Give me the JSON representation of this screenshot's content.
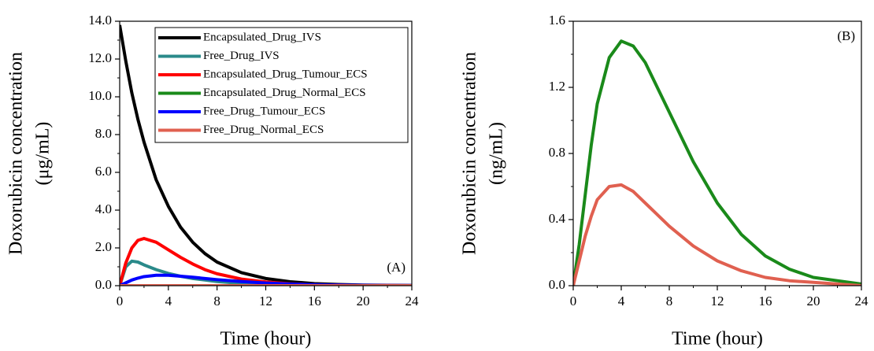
{
  "chart_data": [
    {
      "type": "line",
      "annotation": "(A)",
      "xlabel": "Time (hour)",
      "ylabel": [
        "Doxorubicin concentration",
        "(μg/mL)"
      ],
      "x": [
        0,
        0.5,
        1,
        1.5,
        2,
        3,
        4,
        5,
        6,
        7,
        8,
        10,
        12,
        14,
        16,
        18,
        20,
        22,
        24
      ],
      "xlim": [
        0,
        24
      ],
      "xticks": [
        0,
        4,
        8,
        12,
        16,
        20,
        24
      ],
      "ylim": [
        0,
        14
      ],
      "yticks": [
        {
          "value": 0,
          "label": "0.0"
        },
        {
          "value": 2,
          "label": "2.0"
        },
        {
          "value": 4,
          "label": "4.0"
        },
        {
          "value": 6,
          "label": "6.0"
        },
        {
          "value": 8,
          "label": "8.0"
        },
        {
          "value": 10,
          "label": "10.0"
        },
        {
          "value": 12,
          "label": "12.0"
        },
        {
          "value": 14,
          "label": "14.0"
        }
      ],
      "legend": "upper right",
      "series": [
        {
          "name": "Encapsulated_Drug_IVS",
          "color": "#000000",
          "values": [
            13.8,
            11.9,
            10.2,
            8.8,
            7.6,
            5.6,
            4.2,
            3.1,
            2.3,
            1.7,
            1.25,
            0.69,
            0.38,
            0.21,
            0.11,
            0.06,
            0.03,
            0.02,
            0.01
          ]
        },
        {
          "name": "Free_Drug_IVS",
          "color": "#2a8a8a",
          "values": [
            0,
            1.0,
            1.3,
            1.25,
            1.1,
            0.85,
            0.65,
            0.5,
            0.38,
            0.3,
            0.22,
            0.12,
            0.07,
            0.04,
            0.02,
            0.01,
            0.01,
            0,
            0
          ]
        },
        {
          "name": "Encapsulated_Drug_Tumour_ECS",
          "color": "#ff0000",
          "values": [
            0,
            1.2,
            2.0,
            2.4,
            2.5,
            2.3,
            1.9,
            1.5,
            1.15,
            0.85,
            0.63,
            0.35,
            0.2,
            0.1,
            0.05,
            0.03,
            0.01,
            0.01,
            0
          ]
        },
        {
          "name": "Encapsulated_Drug_Normal_ECS",
          "color": "#1a8a1a",
          "values": [
            0,
            0.00025,
            0.00055,
            0.00085,
            0.0011,
            0.00138,
            0.00148,
            0.00145,
            0.00135,
            0.0012,
            0.00105,
            0.00075,
            0.0005,
            0.00031,
            0.00018,
            0.0001,
            5e-05,
            3e-05,
            1e-05
          ]
        },
        {
          "name": "Free_Drug_Tumour_ECS",
          "color": "#0000ff",
          "values": [
            0,
            0.15,
            0.3,
            0.4,
            0.48,
            0.55,
            0.55,
            0.5,
            0.45,
            0.38,
            0.32,
            0.22,
            0.14,
            0.09,
            0.05,
            0.03,
            0.02,
            0.01,
            0.01
          ]
        },
        {
          "name": "Free_Drug_Normal_ECS",
          "color": "#e06050",
          "values": [
            0,
            0.00015,
            0.0003,
            0.00042,
            0.00052,
            0.0006,
            0.00061,
            0.00057,
            0.0005,
            0.00043,
            0.00036,
            0.00024,
            0.00015,
            9e-05,
            5e-05,
            3e-05,
            2e-05,
            1e-05,
            0
          ]
        }
      ]
    },
    {
      "type": "line",
      "annotation": "(B)",
      "xlabel": "Time (hour)",
      "ylabel": [
        "Doxorubicin concentration",
        "(ng/mL)"
      ],
      "x": [
        0,
        0.5,
        1,
        1.5,
        2,
        3,
        4,
        5,
        6,
        7,
        8,
        10,
        12,
        14,
        16,
        18,
        20,
        22,
        24
      ],
      "xlim": [
        0,
        24
      ],
      "xticks": [
        0,
        4,
        8,
        12,
        16,
        20,
        24
      ],
      "ylim": [
        0,
        1.6
      ],
      "yticks": [
        {
          "value": 0,
          "label": "0.0"
        },
        0.4,
        0.8,
        1.2,
        1.6
      ],
      "series": [
        {
          "color": "#1a8a1a",
          "values": [
            0,
            0.25,
            0.55,
            0.85,
            1.1,
            1.38,
            1.48,
            1.45,
            1.35,
            1.2,
            1.05,
            0.75,
            0.5,
            0.31,
            0.18,
            0.1,
            0.05,
            0.03,
            0.01
          ]
        },
        {
          "color": "#e06050",
          "values": [
            0,
            0.15,
            0.3,
            0.42,
            0.52,
            0.6,
            0.61,
            0.57,
            0.5,
            0.43,
            0.36,
            0.24,
            0.15,
            0.09,
            0.05,
            0.03,
            0.02,
            0.01,
            0
          ]
        }
      ]
    }
  ]
}
